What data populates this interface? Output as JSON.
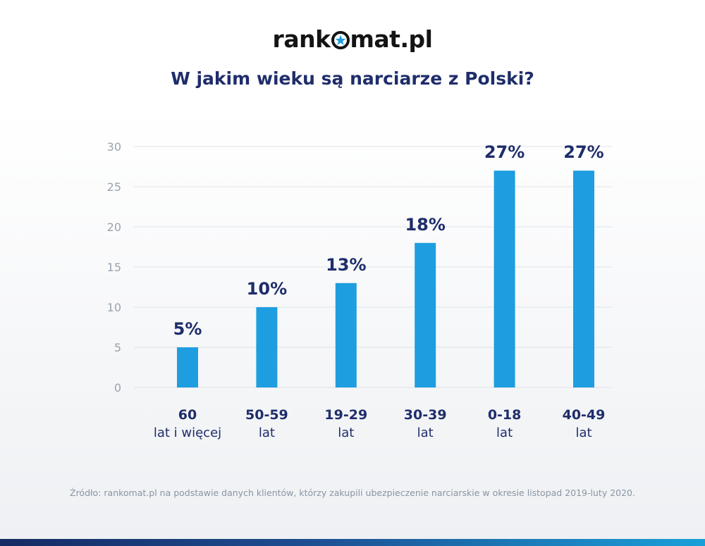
{
  "logo": {
    "before": "rank",
    "after": "mat.pl",
    "icon": "star-in-circle-icon",
    "text": "rankomat.pl"
  },
  "title": "W jakim wieku są narciarze z Polski?",
  "colors": {
    "bar": "#1e9ee0",
    "title": "#1f2d6b",
    "label": "#1f2d6b",
    "tick": "#9aa3ad",
    "grid": "#dfe3e8",
    "star": "#1e9ee0"
  },
  "chart_data": {
    "type": "bar",
    "categories": [
      [
        "60",
        "lat i więcej"
      ],
      [
        "50-59",
        "lat"
      ],
      [
        "19-29",
        "lat"
      ],
      [
        "30-39",
        "lat"
      ],
      [
        "0-18",
        "lat"
      ],
      [
        "40-49",
        "lat"
      ]
    ],
    "values": [
      5,
      10,
      13,
      18,
      27,
      27
    ],
    "data_labels": [
      "5%",
      "10%",
      "13%",
      "18%",
      "27%",
      "27%"
    ],
    "yticks": [
      0,
      5,
      10,
      15,
      20,
      25,
      30
    ],
    "ylim": [
      0,
      30
    ],
    "grid": true,
    "legend": "none"
  },
  "source": "Źródło: rankomat.pl na podstawie danych klientów, którzy zakupili ubezpieczenie narciarskie w okresie listopad 2019-luty 2020."
}
